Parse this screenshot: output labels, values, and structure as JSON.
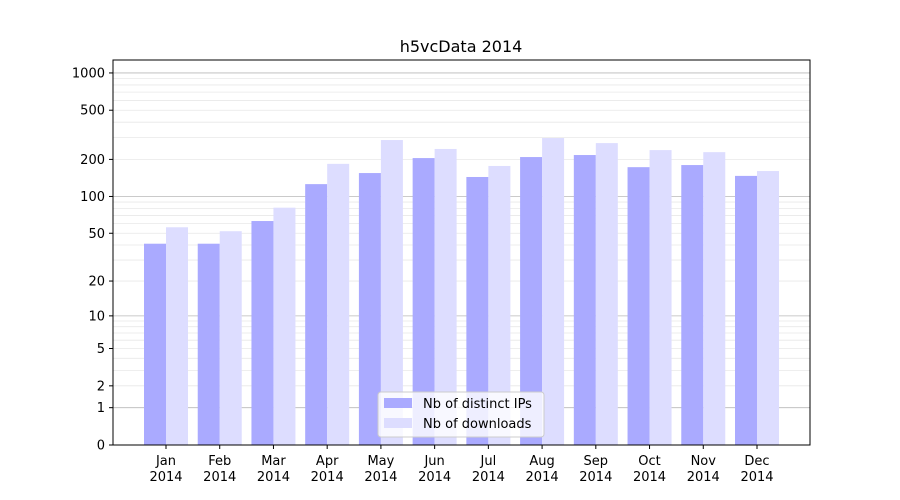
{
  "chart_data": {
    "type": "bar",
    "title": "h5vcData 2014",
    "xlabel": "",
    "ylabel": "",
    "yscale": "symlog",
    "ylim": [
      0,
      1200
    ],
    "yticks": [
      0,
      1,
      2,
      5,
      10,
      20,
      50,
      100,
      200,
      500,
      1000
    ],
    "ytick_labels": [
      "0",
      "1",
      "2",
      "5",
      "10",
      "20",
      "50",
      "100",
      "200",
      "500",
      "1000"
    ],
    "categories": [
      "Jan\n2014",
      "Feb\n2014",
      "Mar\n2014",
      "Apr\n2014",
      "May\n2014",
      "Jun\n2014",
      "Jul\n2014",
      "Aug\n2014",
      "Sep\n2014",
      "Oct\n2014",
      "Nov\n2014",
      "Dec\n2014"
    ],
    "grid": true,
    "legend_position": "lower-center",
    "series": [
      {
        "name": "Nb of distinct IPs",
        "color": "#aaaaff",
        "values": [
          41,
          41,
          63,
          126,
          155,
          205,
          144,
          209,
          217,
          173,
          180,
          147
        ]
      },
      {
        "name": "Nb of downloads",
        "color": "#ddddff",
        "values": [
          56,
          52,
          81,
          184,
          287,
          243,
          177,
          298,
          271,
          238,
          229,
          161
        ]
      }
    ]
  }
}
